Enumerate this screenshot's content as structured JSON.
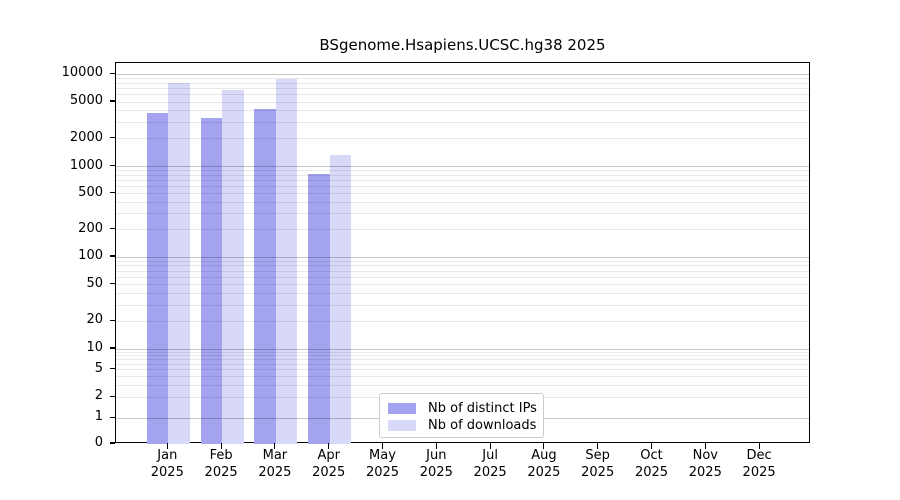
{
  "title": "BSgenome.Hsapiens.UCSC.hg38 2025",
  "chart_data": {
    "type": "bar",
    "title": "BSgenome.Hsapiens.UCSC.hg38 2025",
    "categories": [
      "Jan",
      "Feb",
      "Mar",
      "Apr",
      "May",
      "Jun",
      "Jul",
      "Aug",
      "Sep",
      "Oct",
      "Nov",
      "Dec"
    ],
    "year_label": "2025",
    "series": [
      {
        "name": "Nb of distinct IPs",
        "color": "#a3a3f0",
        "values": [
          3800,
          3360,
          4200,
          820,
          0,
          0,
          0,
          0,
          0,
          0,
          0,
          0
        ]
      },
      {
        "name": "Nb of downloads",
        "color": "#d8d8f8",
        "values": [
          8100,
          6700,
          8800,
          1320,
          0,
          0,
          0,
          0,
          0,
          0,
          0,
          0
        ]
      }
    ],
    "y_ticks": [
      "0",
      "1",
      "2",
      "5",
      "10",
      "20",
      "50",
      "100",
      "200",
      "500",
      "1000",
      "2000",
      "5000",
      "10000"
    ],
    "y_scale": "symlog (log above 1, 0 pinned at baseline)",
    "ylim": [
      0,
      13000
    ],
    "grid": "horizontal log gridlines, minor + major",
    "legend_position": "lower center",
    "axis_color": "#000000",
    "grid_minor_color": "#ebebeb",
    "grid_major_color": "#c7c7c7"
  }
}
